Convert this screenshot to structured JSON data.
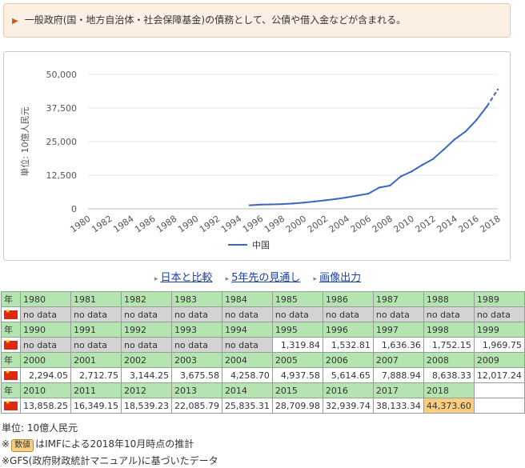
{
  "note": {
    "text": "一般政府(国・地方自治体・社会保障基金)の債務として、公債や借入金などが含まれる。"
  },
  "links": [
    {
      "label": "日本と比較"
    },
    {
      "label": "5年先の見通し"
    },
    {
      "label": "画像出力"
    }
  ],
  "chart_data": {
    "type": "line",
    "ylabel": "単位: 10億人民元",
    "yticks": [
      "50,000",
      "37,500",
      "25,000",
      "12,500",
      "0"
    ],
    "ylim": [
      0,
      50000
    ],
    "xlim": [
      1980,
      2018
    ],
    "xticks": [
      "1980",
      "1982",
      "1984",
      "1986",
      "1988",
      "1990",
      "1992",
      "1994",
      "1996",
      "1998",
      "2000",
      "2002",
      "2004",
      "2006",
      "2008",
      "2010",
      "2012",
      "2014",
      "2016",
      "2018"
    ],
    "series": [
      {
        "name": "中国",
        "color": "#3a66c8",
        "x": [
          1995,
          1996,
          1997,
          1998,
          1999,
          2000,
          2001,
          2002,
          2003,
          2004,
          2005,
          2006,
          2007,
          2008,
          2009,
          2010,
          2011,
          2012,
          2013,
          2014,
          2015,
          2016,
          2017,
          2018
        ],
        "y": [
          1319.84,
          1532.81,
          1636.36,
          1752.15,
          1969.75,
          2294.05,
          2712.75,
          3144.25,
          3675.58,
          4258.7,
          4937.58,
          5614.65,
          7888.94,
          8638.33,
          12017.24,
          13858.25,
          16349.15,
          18539.23,
          22085.79,
          25835.31,
          28709.98,
          32939.74,
          38133.34,
          44373.6
        ],
        "estimate_from": 2017
      }
    ]
  },
  "table": {
    "row_label": "年",
    "rows": [
      {
        "years": [
          "1980",
          "1981",
          "1982",
          "1983",
          "1984",
          "1985",
          "1986",
          "1987",
          "1988",
          "1989"
        ],
        "values": [
          "no data",
          "no data",
          "no data",
          "no data",
          "no data",
          "no data",
          "no data",
          "no data",
          "no data",
          "no data"
        ]
      },
      {
        "years": [
          "1990",
          "1991",
          "1992",
          "1993",
          "1994",
          "1995",
          "1996",
          "1997",
          "1998",
          "1999"
        ],
        "values": [
          "no data",
          "no data",
          "no data",
          "no data",
          "no data",
          "1,319.84",
          "1,532.81",
          "1,636.36",
          "1,752.15",
          "1,969.75"
        ]
      },
      {
        "years": [
          "2000",
          "2001",
          "2002",
          "2003",
          "2004",
          "2005",
          "2006",
          "2007",
          "2008",
          "2009"
        ],
        "values": [
          "2,294.05",
          "2,712.75",
          "3,144.25",
          "3,675.58",
          "4,258.70",
          "4,937.58",
          "5,614.65",
          "7,888.94",
          "8,638.33",
          "12,017.24"
        ]
      },
      {
        "years": [
          "2010",
          "2011",
          "2012",
          "2013",
          "2014",
          "2015",
          "2016",
          "2017",
          "2018"
        ],
        "values": [
          "13,858.25",
          "16,349.15",
          "18,539.23",
          "22,085.79",
          "25,835.31",
          "28,709.98",
          "32,939.74",
          "38,133.34",
          "44,373.60"
        ],
        "estimate_index": 8
      }
    ]
  },
  "footer": {
    "unit": "単位: 10億人民元",
    "est_prefix": "※",
    "est_badge": "数値",
    "est_text": "はIMFによる2018年10月時点の推計",
    "gfs": "※GFS(政府財政統計マニュアル)に基づいたデータ"
  }
}
